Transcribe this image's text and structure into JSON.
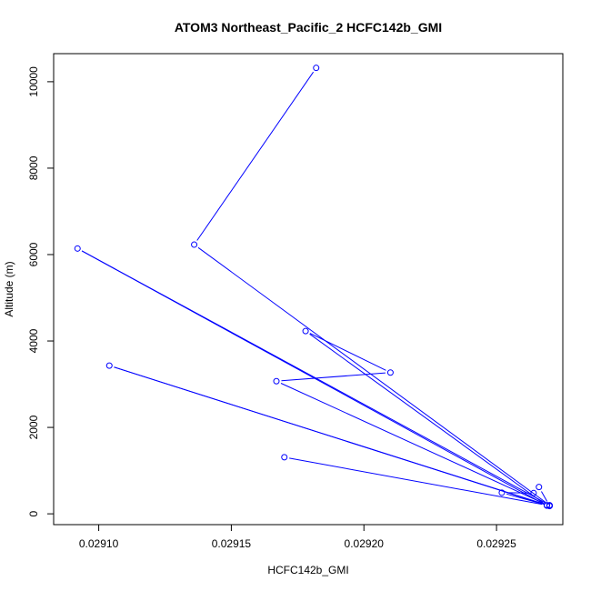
{
  "chart_data": {
    "type": "line",
    "title": "ATOM3 Northeast_Pacific_2 HCFC142b_GMI",
    "xlabel": "HCFC142b_GMI",
    "ylabel": "Altitude (m)",
    "xlim": [
      0.029083,
      0.029275
    ],
    "ylim": [
      -250,
      10650
    ],
    "xticks": [
      0.0291,
      0.02915,
      0.0292,
      0.02925
    ],
    "xtick_labels": [
      "0.02910",
      "0.02915",
      "0.02920",
      "0.02925"
    ],
    "yticks": [
      0,
      2000,
      4000,
      6000,
      8000,
      10000
    ],
    "ytick_labels": [
      "0",
      "2000",
      "4000",
      "6000",
      "8000",
      "10000"
    ],
    "grid": false,
    "series": [
      {
        "color": "#0000ff",
        "marker": "open-circle",
        "points": [
          {
            "x": 0.029182,
            "y": 10320
          },
          {
            "x": 0.029136,
            "y": 6230
          },
          {
            "x": 0.02927,
            "y": 200
          },
          {
            "x": 0.029092,
            "y": 6140
          },
          {
            "x": 0.029269,
            "y": 190
          },
          {
            "x": 0.029178,
            "y": 4230
          },
          {
            "x": 0.02921,
            "y": 3270
          },
          {
            "x": 0.029167,
            "y": 3070
          },
          {
            "x": 0.02927,
            "y": 180
          },
          {
            "x": 0.029104,
            "y": 3430
          },
          {
            "x": 0.02927,
            "y": 185
          },
          {
            "x": 0.029266,
            "y": 620
          },
          {
            "x": 0.029264,
            "y": 480
          },
          {
            "x": 0.029252,
            "y": 490
          },
          {
            "x": 0.029269,
            "y": 200
          },
          {
            "x": 0.02917,
            "y": 1310
          }
        ]
      }
    ]
  }
}
